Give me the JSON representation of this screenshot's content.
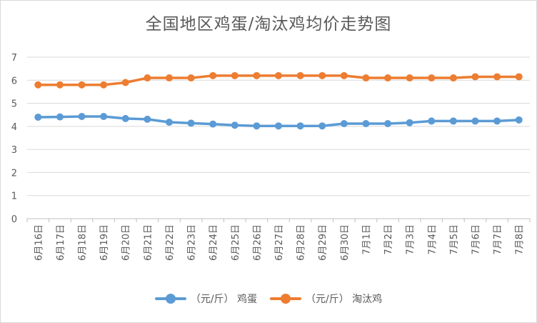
{
  "chart_data": {
    "type": "line",
    "title": "全国地区鸡蛋/淘汰鸡均价走势图",
    "xlabel": "",
    "ylabel": "",
    "ylim": [
      0,
      7
    ],
    "yticks": [
      0,
      1,
      2,
      3,
      4,
      5,
      6,
      7
    ],
    "grid": true,
    "legend_position": "bottom",
    "categories": [
      "6月16日",
      "6月17日",
      "6月18日",
      "6月19日",
      "6月20日",
      "6月21日",
      "6月22日",
      "6月23日",
      "6月24日",
      "6月25日",
      "6月26日",
      "6月27日",
      "6月28日",
      "6月29日",
      "6月30日",
      "7月1日",
      "7月2日",
      "7月3日",
      "7月4日",
      "7月5日",
      "7月6日",
      "7月7日",
      "7月8日"
    ],
    "series": [
      {
        "name": "（元/斤） 鸡蛋",
        "color": "#5B9BD5",
        "values": [
          4.4,
          4.41,
          4.43,
          4.43,
          4.34,
          4.31,
          4.18,
          4.14,
          4.1,
          4.05,
          4.02,
          4.02,
          4.02,
          4.02,
          4.12,
          4.12,
          4.12,
          4.16,
          4.23,
          4.23,
          4.23,
          4.23,
          4.28
        ]
      },
      {
        "name": "（元/斤） 淘汰鸡",
        "color": "#ED7D31",
        "values": [
          5.8,
          5.8,
          5.8,
          5.8,
          5.9,
          6.1,
          6.1,
          6.1,
          6.2,
          6.2,
          6.2,
          6.2,
          6.2,
          6.2,
          6.2,
          6.1,
          6.1,
          6.1,
          6.1,
          6.1,
          6.15,
          6.15,
          6.15
        ]
      }
    ]
  }
}
